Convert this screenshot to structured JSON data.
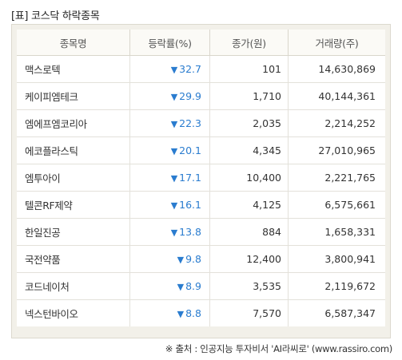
{
  "title": "[표] 코스닥 하락종목",
  "table": {
    "headers": [
      "종목명",
      "등락률(%)",
      "종가(원)",
      "거래량(주)"
    ],
    "down_arrow": "▼",
    "rows": [
      {
        "name": "맥스로텍",
        "rate": "32.7",
        "price": "101",
        "volume": "14,630,869"
      },
      {
        "name": "케이피엠테크",
        "rate": "29.9",
        "price": "1,710",
        "volume": "40,144,361"
      },
      {
        "name": "엠에프엠코리아",
        "rate": "22.3",
        "price": "2,035",
        "volume": "2,214,252"
      },
      {
        "name": "에코플라스틱",
        "rate": "20.1",
        "price": "4,345",
        "volume": "27,010,965"
      },
      {
        "name": "엠투아이",
        "rate": "17.1",
        "price": "10,400",
        "volume": "2,221,765"
      },
      {
        "name": "텔콘RF제약",
        "rate": "16.1",
        "price": "4,125",
        "volume": "6,575,661"
      },
      {
        "name": "한일진공",
        "rate": "13.8",
        "price": "884",
        "volume": "1,658,331"
      },
      {
        "name": "국전약품",
        "rate": "9.8",
        "price": "12,400",
        "volume": "3,800,941"
      },
      {
        "name": "코드네이처",
        "rate": "8.9",
        "price": "3,535",
        "volume": "2,119,672"
      },
      {
        "name": "넥스턴바이오",
        "rate": "8.8",
        "price": "7,570",
        "volume": "6,587,347"
      }
    ]
  },
  "source": "※ 출처 : 인공지능 투자비서 'AI라씨로' (www.rassiro.com)",
  "colors": {
    "down": "#2a7ccf",
    "frame": "#f2f0e9"
  }
}
